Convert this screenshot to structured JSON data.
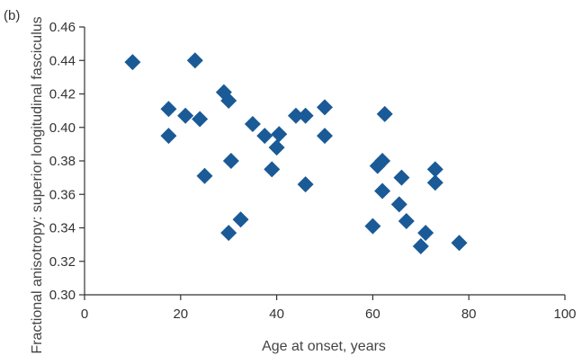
{
  "panel_label": "(b)",
  "colors": {
    "marker": "#1a5a96",
    "axis": "#333333",
    "text": "#333333"
  },
  "chart_data": {
    "type": "scatter",
    "title": "",
    "xlabel": "Age at onset, years",
    "ylabel": "Fractional anisotropy: superior longitudinal fasciculus",
    "xlim": [
      0,
      100
    ],
    "ylim": [
      0.3,
      0.46
    ],
    "xticks": [
      0,
      20,
      40,
      60,
      80,
      100
    ],
    "xtick_labels": [
      "0",
      "20",
      "40",
      "60",
      "80",
      "100"
    ],
    "yticks": [
      0.3,
      0.32,
      0.34,
      0.36,
      0.38,
      0.4,
      0.42,
      0.44,
      0.46
    ],
    "ytick_labels": [
      "0.30",
      "0.32",
      "0.34",
      "0.36",
      "0.38",
      "0.40",
      "0.42",
      "0.44",
      "0.46"
    ],
    "grid": false,
    "marker": "diamond",
    "points": [
      {
        "x": 10,
        "y": 0.439
      },
      {
        "x": 17.5,
        "y": 0.411
      },
      {
        "x": 17.5,
        "y": 0.395
      },
      {
        "x": 21,
        "y": 0.407
      },
      {
        "x": 23,
        "y": 0.44
      },
      {
        "x": 24,
        "y": 0.405
      },
      {
        "x": 25,
        "y": 0.371
      },
      {
        "x": 29,
        "y": 0.421
      },
      {
        "x": 30,
        "y": 0.416
      },
      {
        "x": 30.5,
        "y": 0.38
      },
      {
        "x": 30,
        "y": 0.337
      },
      {
        "x": 32.5,
        "y": 0.345
      },
      {
        "x": 35,
        "y": 0.402
      },
      {
        "x": 37.5,
        "y": 0.395
      },
      {
        "x": 39,
        "y": 0.375
      },
      {
        "x": 40,
        "y": 0.388
      },
      {
        "x": 40.5,
        "y": 0.396
      },
      {
        "x": 44,
        "y": 0.407
      },
      {
        "x": 46,
        "y": 0.407
      },
      {
        "x": 46,
        "y": 0.366
      },
      {
        "x": 50,
        "y": 0.412
      },
      {
        "x": 50,
        "y": 0.395
      },
      {
        "x": 60,
        "y": 0.341
      },
      {
        "x": 61,
        "y": 0.377
      },
      {
        "x": 62,
        "y": 0.38
      },
      {
        "x": 62,
        "y": 0.362
      },
      {
        "x": 62.5,
        "y": 0.408
      },
      {
        "x": 65.5,
        "y": 0.354
      },
      {
        "x": 66,
        "y": 0.37
      },
      {
        "x": 67,
        "y": 0.344
      },
      {
        "x": 70,
        "y": 0.329
      },
      {
        "x": 71,
        "y": 0.337
      },
      {
        "x": 73,
        "y": 0.375
      },
      {
        "x": 73,
        "y": 0.367
      },
      {
        "x": 78,
        "y": 0.331
      }
    ]
  }
}
